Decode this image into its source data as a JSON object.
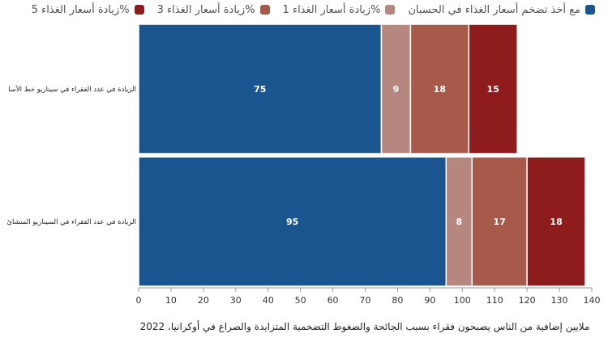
{
  "chart_data": {
    "type": "bar",
    "orientation": "horizontal",
    "stacked": true,
    "categories": [
      "الزيادة في عدد الفقراء في سيناريو خط الأساس",
      "الزيادة في عدد الفقراء في السيناريو المتشائم"
    ],
    "series": [
      {
        "name": "مع أخذ تضخم أسعار الغذاء في الحسبان",
        "values": [
          75,
          95
        ],
        "color": "#1a5590"
      },
      {
        "name": "زيادة أسعار الغذاء 1%",
        "values": [
          9,
          8
        ],
        "color": "#b5877e"
      },
      {
        "name": "زيادة أسعار الغذاء 3%",
        "values": [
          18,
          17
        ],
        "color": "#a85a4a"
      },
      {
        "name": "زيادة أسعار الغذاء 5%",
        "values": [
          15,
          18
        ],
        "color": "#8e1c1c"
      }
    ],
    "category_labels_display": [
      "الزيادة في عدد الفقراء في سيناريو خط الأسا",
      "الزيادة في عدد الفقراء في السيناريو المتشائ"
    ],
    "xlim": [
      0,
      140
    ],
    "xticks": [
      0,
      10,
      20,
      30,
      40,
      50,
      60,
      70,
      80,
      90,
      100,
      110,
      120,
      130,
      140
    ],
    "xlabel": "ملايين إضافية من الناس يصبحون فقراء بسبب الجائحة والضغوط التضخمية المتزايدة والصراع في أوكرانيا، 2022",
    "legend_position": "top",
    "grid": false
  }
}
